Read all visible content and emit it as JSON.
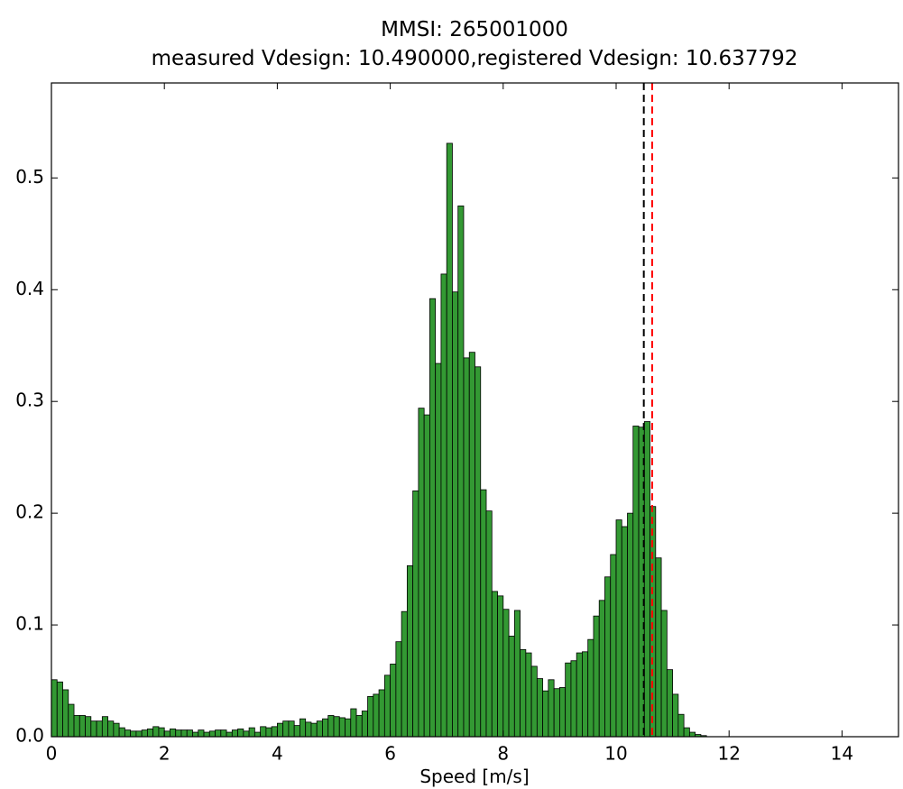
{
  "chart_data": {
    "type": "histogram",
    "title": "MMSI: 265001000",
    "subtitle": "measured Vdesign: 10.490000,registered Vdesign: 10.637792",
    "x_label": "Speed [m/s]",
    "color": "#339933",
    "bins": [
      0,
      0.1,
      0.2,
      0.3,
      0.4,
      0.5,
      0.6,
      0.7,
      0.8,
      0.9,
      1,
      1.1,
      1.2,
      1.3,
      1.4,
      1.5,
      1.6,
      1.7,
      1.8,
      1.9,
      2,
      2.1,
      2.2,
      2.3,
      2.4,
      2.5,
      2.6,
      2.7,
      2.8,
      2.9,
      3,
      3.1,
      3.2,
      3.3,
      3.4,
      3.5,
      3.6,
      3.7,
      3.8,
      3.9,
      4,
      4.1,
      4.2,
      4.3,
      4.4,
      4.5,
      4.6,
      4.7,
      4.8,
      4.9,
      5,
      5.1,
      5.2,
      5.3,
      5.4,
      5.5,
      5.6,
      5.7,
      5.8,
      5.9,
      6,
      6.1,
      6.2,
      6.3,
      6.4,
      6.5,
      6.6,
      6.7,
      6.8,
      6.9,
      7,
      7.1,
      7.2,
      7.3,
      7.4,
      7.5,
      7.6,
      7.7,
      7.8,
      7.9,
      8,
      8.1,
      8.2,
      8.3,
      8.4,
      8.5,
      8.6,
      8.7,
      8.8,
      8.9,
      9,
      9.1,
      9.2,
      9.3,
      9.4,
      9.5,
      9.6,
      9.7,
      9.8,
      9.9,
      10,
      10.1,
      10.2,
      10.3,
      10.4,
      10.5,
      10.6,
      10.7,
      10.8,
      10.9,
      11,
      11.1,
      11.2,
      11.3,
      11.4,
      11.5,
      11.6,
      11.7,
      11.8,
      11.9,
      12,
      12.1,
      12.2,
      12.3,
      12.4,
      12.5,
      12.6,
      12.7,
      12.8,
      12.9,
      13,
      13.1,
      13.2,
      13.3,
      13.4,
      13.5,
      13.6,
      13.7,
      13.8,
      13.9,
      14,
      14.1,
      14.2,
      14.3,
      14.4,
      14.5,
      14.6,
      14.7,
      14.8,
      14.9,
      15
    ],
    "values": [
      0.051,
      0.049,
      0.042,
      0.029,
      0.019,
      0.019,
      0.018,
      0.014,
      0.014,
      0.018,
      0.014,
      0.012,
      0.008,
      0.006,
      0.005,
      0.005,
      0.006,
      0.007,
      0.009,
      0.008,
      0.005,
      0.007,
      0.006,
      0.006,
      0.006,
      0.004,
      0.006,
      0.004,
      0.005,
      0.006,
      0.006,
      0.004,
      0.006,
      0.007,
      0.005,
      0.008,
      0.004,
      0.009,
      0.008,
      0.009,
      0.012,
      0.014,
      0.014,
      0.01,
      0.016,
      0.013,
      0.012,
      0.014,
      0.016,
      0.019,
      0.018,
      0.017,
      0.016,
      0.025,
      0.019,
      0.023,
      0.036,
      0.038,
      0.042,
      0.055,
      0.065,
      0.085,
      0.112,
      0.153,
      0.22,
      0.294,
      0.288,
      0.392,
      0.334,
      0.414,
      0.531,
      0.398,
      0.475,
      0.339,
      0.344,
      0.331,
      0.221,
      0.202,
      0.13,
      0.126,
      0.114,
      0.09,
      0.113,
      0.078,
      0.075,
      0.063,
      0.052,
      0.041,
      0.051,
      0.043,
      0.044,
      0.066,
      0.068,
      0.075,
      0.076,
      0.087,
      0.108,
      0.122,
      0.143,
      0.163,
      0.194,
      0.188,
      0.2,
      0.278,
      0.277,
      0.282,
      0.206,
      0.16,
      0.113,
      0.06,
      0.038,
      0.02,
      0.008,
      0.004,
      0.002,
      0.001,
      0,
      0,
      0,
      0,
      0,
      0,
      0,
      0,
      0,
      0,
      0,
      0,
      0,
      0,
      0,
      0,
      0,
      0,
      0,
      0,
      0,
      0,
      0,
      0,
      0,
      0,
      0,
      0,
      0,
      0,
      0,
      0,
      0,
      0
    ],
    "vlines": [
      {
        "value": 10.49,
        "color": "#000000"
      },
      {
        "value": 10.637792,
        "color": "#ff0000"
      }
    ],
    "xlim": [
      0,
      15
    ],
    "xticks": [
      0,
      2,
      4,
      6,
      8,
      10,
      12,
      14
    ],
    "ylim": [
      0,
      0.585
    ],
    "yticks": [
      {
        "value": 0,
        "label": "0.0"
      },
      0.1,
      0.2,
      0.3,
      0.4,
      0.5
    ]
  }
}
